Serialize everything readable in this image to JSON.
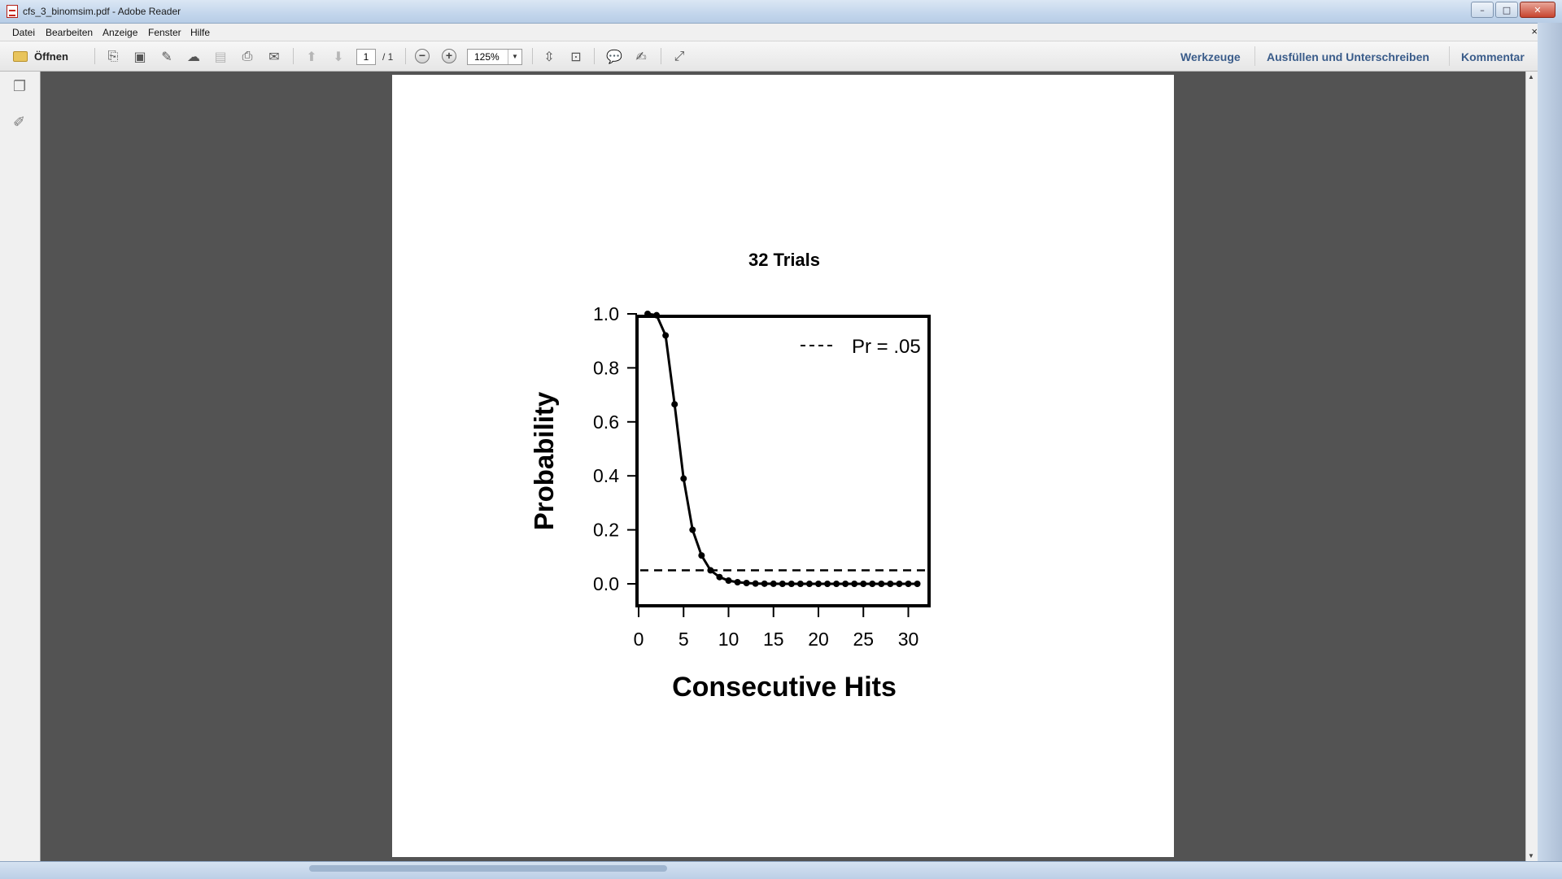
{
  "window": {
    "title": "cfs_3_binomsim.pdf - Adobe Reader",
    "minimize": "–",
    "maximize": "□",
    "close": "✕"
  },
  "menu": {
    "items": [
      "Datei",
      "Bearbeiten",
      "Anzeige",
      "Fenster",
      "Hilfe"
    ],
    "close_doc": "×"
  },
  "toolbar": {
    "open_label": "Öffnen",
    "page_current": "1",
    "page_total": "/ 1",
    "zoom": "125%",
    "right_links": [
      "Werkzeuge",
      "Ausfüllen und Unterschreiben",
      "Kommentar"
    ]
  },
  "chart_data": {
    "type": "line",
    "title": "32 Trials",
    "xlabel": "Consecutive Hits",
    "ylabel": "Probability",
    "xlim": [
      0,
      32
    ],
    "ylim": [
      0,
      1
    ],
    "xticks": [
      "0",
      "5",
      "10",
      "15",
      "20",
      "25",
      "30"
    ],
    "yticks": [
      "0.0",
      "0.2",
      "0.4",
      "0.6",
      "0.8",
      "1.0"
    ],
    "series": [
      {
        "x": [
          1,
          2,
          3,
          4,
          5,
          6,
          7,
          8,
          9,
          10,
          11,
          12,
          13,
          14,
          15,
          16,
          17,
          18,
          19,
          20,
          21,
          22,
          23,
          24,
          25,
          26,
          27,
          28,
          29,
          30,
          31
        ],
        "values": [
          1.0,
          0.995,
          0.92,
          0.665,
          0.39,
          0.2,
          0.105,
          0.05,
          0.025,
          0.012,
          0.006,
          0.003,
          0.001,
          0.0005,
          0.0002,
          0,
          0,
          0,
          0,
          0,
          0,
          0,
          0,
          0,
          0,
          0,
          0,
          0,
          0,
          0,
          0
        ]
      }
    ],
    "reference_line": {
      "y": 0.05,
      "style": "dashed",
      "label": "Pr = .05"
    },
    "legend_position": "top-right"
  }
}
